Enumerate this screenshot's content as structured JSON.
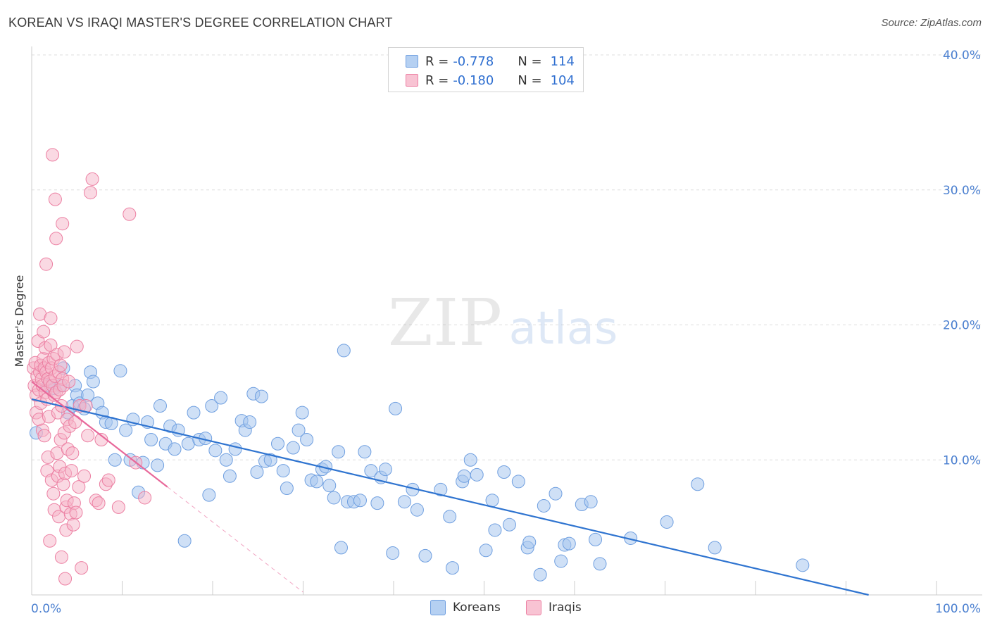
{
  "title": "KOREAN VS IRAQI MASTER'S DEGREE CORRELATION CHART",
  "source": "Source: ZipAtlas.com",
  "watermark": {
    "zip": "ZIP",
    "atlas": "atlas"
  },
  "legend": {
    "rows": [
      {
        "r_label": "R =",
        "r_value": "-0.778",
        "n_label": "N =",
        "n_value": "114"
      },
      {
        "r_label": "R =",
        "r_value": "-0.180",
        "n_label": "N =",
        "n_value": "104"
      }
    ]
  },
  "bottom_legend": {
    "koreans": "Koreans",
    "iraqis": "Iraqis"
  },
  "colors": {
    "korean_fill": "#a8c6ee",
    "korean_stroke": "#6f9fe0",
    "korean_line": "#2f74d0",
    "iraqi_fill": "#f6b3c8",
    "iraqi_stroke": "#ec7fa2",
    "iraqi_line": "#e8689a",
    "axis_text": "#4a7fd0",
    "grid": "#dddddd"
  },
  "chart_data": {
    "type": "scatter",
    "title": "KOREAN VS IRAQI MASTER'S DEGREE CORRELATION CHART",
    "xlabel": "",
    "ylabel": "Master's Degree",
    "xlim": [
      0,
      100
    ],
    "ylim": [
      0,
      40
    ],
    "x_tick_labels": [
      "0.0%",
      "100.0%"
    ],
    "y_ticks": [
      10,
      20,
      30,
      40
    ],
    "y_tick_labels": [
      "10.0%",
      "20.0%",
      "30.0%",
      "40.0%"
    ],
    "grid": true,
    "legend_position": "top-center",
    "series": [
      {
        "name": "Koreans",
        "R": -0.778,
        "N": 114,
        "trend": {
          "x": [
            0,
            92.5
          ],
          "y": [
            14.5,
            0
          ]
        },
        "points": [
          [
            0.5,
            12.0
          ],
          [
            1.8,
            15.5
          ],
          [
            2.5,
            15.3
          ],
          [
            3.2,
            15.5
          ],
          [
            3.5,
            16.8
          ],
          [
            4.0,
            13.5
          ],
          [
            4.5,
            14.0
          ],
          [
            4.8,
            15.5
          ],
          [
            5.0,
            14.8
          ],
          [
            5.3,
            14.2
          ],
          [
            5.8,
            13.8
          ],
          [
            6.2,
            14.8
          ],
          [
            6.5,
            16.5
          ],
          [
            6.8,
            15.8
          ],
          [
            7.3,
            14.2
          ],
          [
            7.8,
            13.5
          ],
          [
            8.2,
            12.8
          ],
          [
            8.8,
            12.7
          ],
          [
            9.2,
            10.0
          ],
          [
            9.8,
            16.6
          ],
          [
            10.4,
            12.2
          ],
          [
            10.9,
            10.0
          ],
          [
            11.2,
            13.0
          ],
          [
            11.8,
            7.6
          ],
          [
            12.3,
            9.8
          ],
          [
            12.8,
            12.8
          ],
          [
            13.2,
            11.5
          ],
          [
            13.9,
            9.6
          ],
          [
            14.2,
            14.0
          ],
          [
            14.8,
            11.2
          ],
          [
            15.3,
            12.5
          ],
          [
            15.8,
            10.8
          ],
          [
            16.2,
            12.2
          ],
          [
            16.9,
            4.0
          ],
          [
            17.3,
            11.2
          ],
          [
            17.9,
            13.5
          ],
          [
            18.5,
            11.5
          ],
          [
            19.2,
            11.6
          ],
          [
            19.6,
            7.4
          ],
          [
            19.9,
            14.0
          ],
          [
            20.3,
            10.7
          ],
          [
            20.9,
            14.6
          ],
          [
            21.5,
            10.0
          ],
          [
            21.9,
            8.8
          ],
          [
            22.5,
            10.8
          ],
          [
            23.2,
            12.9
          ],
          [
            23.6,
            12.2
          ],
          [
            24.1,
            12.8
          ],
          [
            24.5,
            14.9
          ],
          [
            24.9,
            9.1
          ],
          [
            25.4,
            14.7
          ],
          [
            25.8,
            9.9
          ],
          [
            26.4,
            10.0
          ],
          [
            27.2,
            11.2
          ],
          [
            27.8,
            9.2
          ],
          [
            28.2,
            7.9
          ],
          [
            28.9,
            10.9
          ],
          [
            29.5,
            12.2
          ],
          [
            29.9,
            13.5
          ],
          [
            30.4,
            11.5
          ],
          [
            30.9,
            8.5
          ],
          [
            31.5,
            8.4
          ],
          [
            32.1,
            9.3
          ],
          [
            32.5,
            9.5
          ],
          [
            32.9,
            8.1
          ],
          [
            33.4,
            7.2
          ],
          [
            33.9,
            10.6
          ],
          [
            34.2,
            3.5
          ],
          [
            34.5,
            18.1
          ],
          [
            34.9,
            6.9
          ],
          [
            35.6,
            6.9
          ],
          [
            36.3,
            7.0
          ],
          [
            36.8,
            10.6
          ],
          [
            37.5,
            9.2
          ],
          [
            38.2,
            6.8
          ],
          [
            38.6,
            8.7
          ],
          [
            39.1,
            9.3
          ],
          [
            39.9,
            3.1
          ],
          [
            40.2,
            13.8
          ],
          [
            41.2,
            6.9
          ],
          [
            42.1,
            7.8
          ],
          [
            42.6,
            6.3
          ],
          [
            43.5,
            2.9
          ],
          [
            45.2,
            7.8
          ],
          [
            46.2,
            5.8
          ],
          [
            46.5,
            2.0
          ],
          [
            47.6,
            8.4
          ],
          [
            47.8,
            8.8
          ],
          [
            48.5,
            10.0
          ],
          [
            49.2,
            8.9
          ],
          [
            50.2,
            3.3
          ],
          [
            50.9,
            7.0
          ],
          [
            51.2,
            4.8
          ],
          [
            52.2,
            9.1
          ],
          [
            52.8,
            5.2
          ],
          [
            53.8,
            8.4
          ],
          [
            54.8,
            3.5
          ],
          [
            55.0,
            3.9
          ],
          [
            56.2,
            1.5
          ],
          [
            56.6,
            6.6
          ],
          [
            57.9,
            7.5
          ],
          [
            58.5,
            2.5
          ],
          [
            58.9,
            3.7
          ],
          [
            59.4,
            3.8
          ],
          [
            60.8,
            6.7
          ],
          [
            61.8,
            6.9
          ],
          [
            62.3,
            4.1
          ],
          [
            62.8,
            2.3
          ],
          [
            66.2,
            4.2
          ],
          [
            70.2,
            5.4
          ],
          [
            73.6,
            8.2
          ],
          [
            75.5,
            3.5
          ],
          [
            85.2,
            2.2
          ]
        ]
      },
      {
        "name": "Iraqis",
        "R": -0.18,
        "N": 104,
        "trend": {
          "x": [
            0,
            15
          ],
          "y": [
            15.8,
            8.0
          ]
        },
        "trend_extension": {
          "x": [
            15,
            30
          ],
          "y": [
            8.0,
            0.2
          ]
        },
        "points": [
          [
            0.2,
            16.8
          ],
          [
            0.3,
            15.5
          ],
          [
            0.4,
            17.2
          ],
          [
            0.5,
            14.8
          ],
          [
            0.5,
            13.5
          ],
          [
            0.6,
            16.2
          ],
          [
            0.7,
            18.8
          ],
          [
            0.8,
            15.2
          ],
          [
            0.8,
            13.0
          ],
          [
            0.9,
            16.5
          ],
          [
            0.9,
            20.8
          ],
          [
            1.0,
            17.0
          ],
          [
            1.0,
            14.2
          ],
          [
            1.1,
            16.0
          ],
          [
            1.2,
            15.5
          ],
          [
            1.2,
            12.2
          ],
          [
            1.3,
            17.5
          ],
          [
            1.3,
            19.5
          ],
          [
            1.4,
            16.8
          ],
          [
            1.4,
            11.8
          ],
          [
            1.5,
            15.0
          ],
          [
            1.5,
            18.3
          ],
          [
            1.6,
            16.5
          ],
          [
            1.6,
            24.5
          ],
          [
            1.7,
            14.5
          ],
          [
            1.7,
            9.2
          ],
          [
            1.8,
            16.0
          ],
          [
            1.8,
            10.2
          ],
          [
            1.9,
            17.2
          ],
          [
            1.9,
            13.2
          ],
          [
            2.0,
            15.8
          ],
          [
            2.0,
            4.0
          ],
          [
            2.1,
            20.5
          ],
          [
            2.1,
            18.5
          ],
          [
            2.2,
            16.8
          ],
          [
            2.2,
            8.5
          ],
          [
            2.3,
            15.5
          ],
          [
            2.3,
            32.6
          ],
          [
            2.4,
            17.5
          ],
          [
            2.4,
            7.5
          ],
          [
            2.5,
            14.8
          ],
          [
            2.5,
            6.3
          ],
          [
            2.6,
            16.2
          ],
          [
            2.6,
            29.3
          ],
          [
            2.7,
            15.0
          ],
          [
            2.7,
            26.4
          ],
          [
            2.8,
            17.8
          ],
          [
            2.8,
            10.5
          ],
          [
            2.9,
            13.5
          ],
          [
            2.9,
            8.8
          ],
          [
            3.0,
            16.5
          ],
          [
            3.0,
            5.8
          ],
          [
            3.1,
            15.2
          ],
          [
            3.1,
            9.5
          ],
          [
            3.2,
            17.0
          ],
          [
            3.2,
            11.5
          ],
          [
            3.3,
            14.0
          ],
          [
            3.3,
            2.8
          ],
          [
            3.4,
            16.0
          ],
          [
            3.4,
            27.5
          ],
          [
            3.5,
            15.5
          ],
          [
            3.5,
            8.2
          ],
          [
            3.6,
            18.0
          ],
          [
            3.6,
            12.0
          ],
          [
            3.7,
            9.0
          ],
          [
            3.7,
            1.2
          ],
          [
            3.8,
            6.5
          ],
          [
            3.8,
            4.8
          ],
          [
            3.9,
            13.0
          ],
          [
            3.9,
            7.0
          ],
          [
            4.0,
            10.8
          ],
          [
            4.1,
            15.8
          ],
          [
            4.2,
            12.5
          ],
          [
            4.3,
            6.0
          ],
          [
            4.4,
            9.2
          ],
          [
            4.5,
            10.5
          ],
          [
            4.6,
            5.2
          ],
          [
            4.7,
            6.8
          ],
          [
            4.8,
            12.8
          ],
          [
            4.9,
            6.1
          ],
          [
            5.0,
            18.4
          ],
          [
            5.2,
            8.0
          ],
          [
            5.3,
            14.0
          ],
          [
            5.5,
            2.0
          ],
          [
            5.8,
            8.8
          ],
          [
            6.0,
            14.0
          ],
          [
            6.2,
            11.8
          ],
          [
            6.5,
            29.8
          ],
          [
            6.7,
            30.8
          ],
          [
            7.1,
            7.0
          ],
          [
            7.4,
            6.8
          ],
          [
            7.7,
            11.5
          ],
          [
            8.2,
            8.2
          ],
          [
            8.5,
            8.5
          ],
          [
            10.8,
            28.2
          ],
          [
            9.6,
            6.5
          ],
          [
            11.5,
            9.8
          ],
          [
            12.5,
            7.2
          ]
        ]
      }
    ]
  }
}
